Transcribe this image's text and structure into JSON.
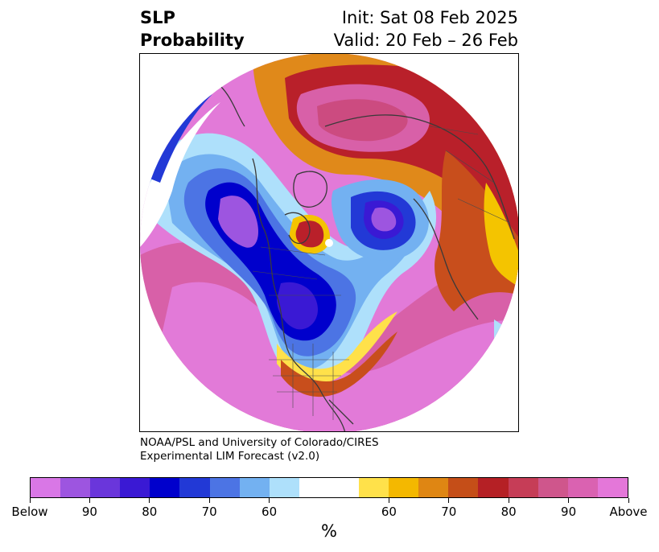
{
  "header": {
    "title_line1": "SLP",
    "title_line2": "Probability",
    "init_label": "Init: Sat 08 Feb 2025",
    "valid_label": "Valid: 20 Feb – 26 Feb"
  },
  "credit": {
    "line1": "NOAA/PSL and University of Colorado/CIRES",
    "line2": "Experimental LIM Forecast (v2.0)"
  },
  "colorbar": {
    "unit": "%",
    "colors": [
      "#d977e6",
      "#9d55e0",
      "#6a36db",
      "#3a19d4",
      "#0000cc",
      "#2239d6",
      "#4c74e4",
      "#73b1f1",
      "#aee0fb",
      "#ffffff",
      "#ffe14a",
      "#f4b800",
      "#df8613",
      "#c54e18",
      "#b52025",
      "#c63d57",
      "#cf568c",
      "#da62b1",
      "#e477d9"
    ],
    "tick_labels": [
      "Below",
      "90",
      "80",
      "70",
      "60",
      "60",
      "70",
      "80",
      "90",
      "Above"
    ]
  },
  "map": {
    "projection": "north-polar-stereographic",
    "field": "sea level pressure tercile probability",
    "palette": {
      "above_high": "#e27ad8",
      "above_mid2": "#d860a8",
      "above_mid": "#cc4b80",
      "above_low2": "#b9202a",
      "above_low": "#c84e1c",
      "orange": "#e0891a",
      "yellow": "#f4c400",
      "light_yellow": "#ffe14a",
      "below_low": "#aee0fb",
      "below_low2": "#73b1f1",
      "below_mid": "#4c74e4",
      "below_mid2": "#2239d6",
      "below_high": "#0000cc",
      "below_high2": "#3a19d4",
      "below_max": "#9d55e0",
      "coast": "#3a3a3a"
    }
  }
}
